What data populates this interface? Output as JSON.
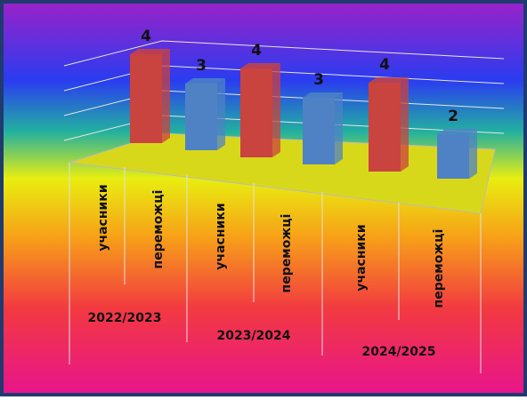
{
  "chart_data": {
    "type": "bar3d",
    "categories": [
      "учасники",
      "переможці",
      "учасники",
      "переможці",
      "учасники",
      "переможці"
    ],
    "groups": [
      "2022/2023",
      "2023/2024",
      "2024/2025"
    ],
    "values": [
      4,
      3,
      4,
      3,
      4,
      2
    ],
    "colors": [
      "#c9433f",
      "#4f82c4",
      "#c9433f",
      "#4f82c4",
      "#c9433f",
      "#4f82c4"
    ],
    "ylim": [
      0,
      4
    ]
  }
}
